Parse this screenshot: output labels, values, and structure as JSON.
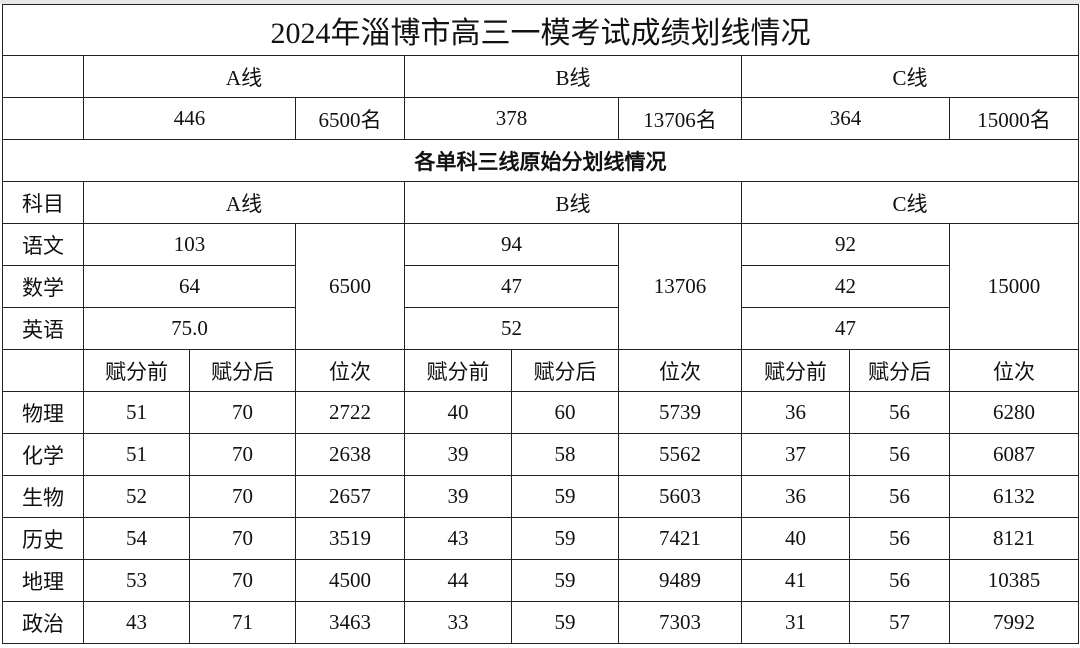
{
  "title": "2024年淄博市高三一模考试成绩划线情况",
  "lines": [
    {
      "name": "A线",
      "score": "446",
      "rank": "6500名"
    },
    {
      "name": "B线",
      "score": "378",
      "rank": "13706名"
    },
    {
      "name": "C线",
      "score": "364",
      "rank": "15000名"
    }
  ],
  "subtitle": "各单科三线原始分划线情况",
  "subject_header": "科目",
  "core": {
    "subjects": [
      "语文",
      "数学",
      "英语"
    ],
    "A": {
      "scores": [
        "103",
        "64",
        "75.0"
      ],
      "rank": "6500"
    },
    "B": {
      "scores": [
        "94",
        "47",
        "52"
      ],
      "rank": "13706"
    },
    "C": {
      "scores": [
        "92",
        "42",
        "47"
      ],
      "rank": "15000"
    }
  },
  "elective_headers": [
    "赋分前",
    "赋分后",
    "位次"
  ],
  "electives": [
    {
      "subject": "物理",
      "values": [
        "51",
        "70",
        "2722",
        "40",
        "60",
        "5739",
        "36",
        "56",
        "6280"
      ]
    },
    {
      "subject": "化学",
      "values": [
        "51",
        "70",
        "2638",
        "39",
        "58",
        "5562",
        "37",
        "56",
        "6087"
      ]
    },
    {
      "subject": "生物",
      "values": [
        "52",
        "70",
        "2657",
        "39",
        "59",
        "5603",
        "36",
        "56",
        "6132"
      ]
    },
    {
      "subject": "历史",
      "values": [
        "54",
        "70",
        "3519",
        "43",
        "59",
        "7421",
        "40",
        "56",
        "8121"
      ]
    },
    {
      "subject": "地理",
      "values": [
        "53",
        "70",
        "4500",
        "44",
        "59",
        "9489",
        "41",
        "56",
        "10385"
      ]
    },
    {
      "subject": "政治",
      "values": [
        "43",
        "71",
        "3463",
        "33",
        "59",
        "7303",
        "31",
        "57",
        "7992"
      ]
    }
  ]
}
